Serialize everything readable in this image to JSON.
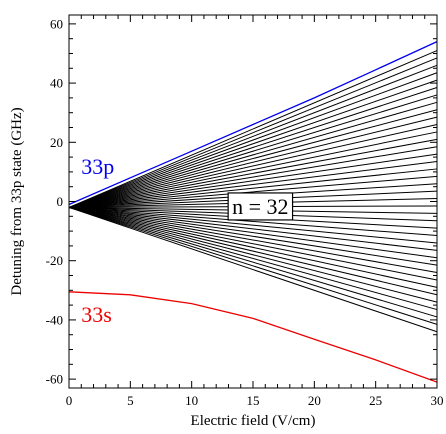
{
  "chart_data": {
    "type": "line",
    "title": "",
    "xlabel": "Electric field (V/cm)",
    "ylabel": "Detuning from 33p state (GHz)",
    "xlim": [
      0,
      30
    ],
    "ylim": [
      -63,
      63
    ],
    "x_ticks": [
      0,
      5,
      10,
      15,
      20,
      25,
      30
    ],
    "y_ticks": [
      -60,
      -40,
      -20,
      0,
      20,
      40,
      60
    ],
    "grid": false,
    "legend": "none",
    "series": [
      {
        "name": "33p",
        "color": "#0000ee",
        "x": [
          0,
          5,
          10,
          15,
          20,
          25,
          30
        ],
        "y": [
          -1,
          8,
          17,
          26,
          35,
          44.5,
          54
        ]
      },
      {
        "name": "33s",
        "color": "#ee0000",
        "x": [
          0,
          5,
          10,
          15,
          20,
          25,
          30
        ],
        "y": [
          -30.5,
          -31.5,
          -34.5,
          -39.5,
          -46.5,
          -53.5,
          -61
        ]
      }
    ],
    "stark_manifold": {
      "label": "n = 32",
      "color": "#000000",
      "origin": [
        0,
        -2
      ],
      "x_end": 30,
      "end_values": [
        51,
        48.5,
        46,
        43.5,
        41,
        38.5,
        36,
        33.5,
        31,
        28.5,
        26,
        23.5,
        21,
        18.5,
        16,
        13.5,
        11,
        8.5,
        6,
        3.5,
        1,
        -1.5,
        -4,
        -6.5,
        -9,
        -11.5,
        -14,
        -16.5,
        -19,
        -21.5,
        -24,
        -26.5,
        -29,
        -31.5,
        -34,
        -36.5,
        -39,
        -41.5,
        -44
      ]
    },
    "annotations": [
      {
        "text": "33p",
        "x": 1,
        "y": 11,
        "color": "#0000ee"
      },
      {
        "text": "33s",
        "x": 1,
        "y": -39,
        "color": "#ee0000"
      },
      {
        "text": "n = 32",
        "x": 13.3,
        "y": -2.5,
        "color": "#000000",
        "boxed": true
      }
    ]
  }
}
